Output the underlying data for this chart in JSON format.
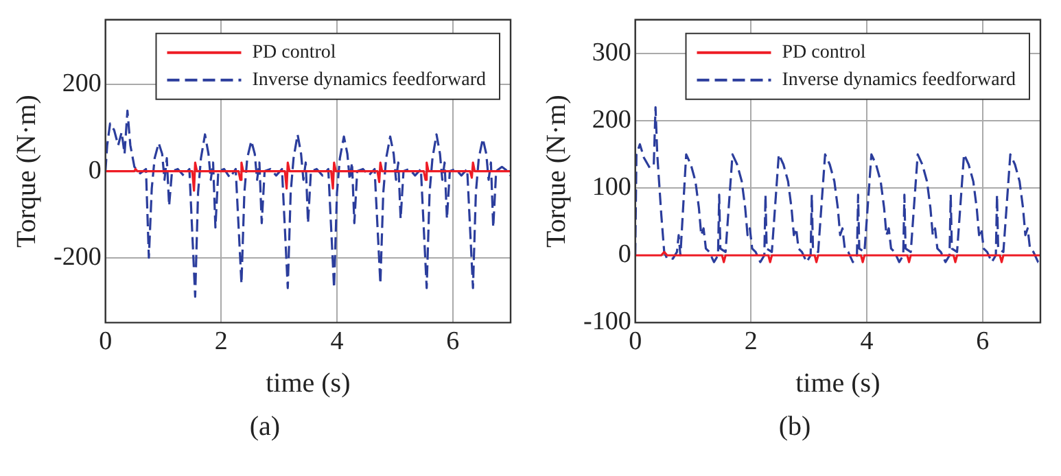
{
  "chart_data": [
    {
      "type": "line",
      "xlabel": "time (s)",
      "ylabel": "Torque (N·m)",
      "xlim": [
        0,
        7
      ],
      "xticks": [
        0,
        2,
        4,
        6
      ],
      "ylim": [
        -350,
        350
      ],
      "yticks": [
        -200,
        0,
        200
      ],
      "grid": true,
      "legend": "top right",
      "marker": "none",
      "annotations": [
        "(a)"
      ],
      "series": [
        {
          "name": "PD control",
          "color": "#ee1c25",
          "line_style": "solid",
          "x": [
            0,
            0.5,
            0.52,
            0.55,
            1.5,
            1.53,
            1.55,
            1.58,
            2.3,
            2.33,
            2.35,
            2.38,
            3.1,
            3.13,
            3.15,
            3.18,
            3.9,
            3.93,
            3.95,
            3.98,
            4.7,
            4.73,
            4.75,
            4.78,
            5.5,
            5.53,
            5.55,
            5.58,
            6.3,
            6.33,
            6.35,
            6.38,
            7
          ],
          "values": [
            0,
            0,
            5,
            0,
            0,
            -45,
            20,
            0,
            0,
            -20,
            20,
            0,
            0,
            -40,
            20,
            0,
            0,
            -40,
            20,
            0,
            0,
            -25,
            20,
            0,
            0,
            -20,
            20,
            0,
            0,
            -15,
            20,
            0,
            0
          ]
        },
        {
          "name": "Inverse dynamics feedforward",
          "color": "#2b3d9c",
          "line_style": "dashed",
          "x": [
            0,
            0.03,
            0.08,
            0.15,
            0.22,
            0.28,
            0.33,
            0.38,
            0.43,
            0.5,
            0.6,
            0.7,
            0.75,
            0.8,
            0.85,
            0.92,
            0.98,
            1.02,
            1.06,
            1.1,
            1.15,
            1.25,
            1.35,
            1.45,
            1.55,
            1.6,
            1.65,
            1.72,
            1.78,
            1.82,
            1.86,
            1.9,
            1.95,
            2.05,
            2.15,
            2.25,
            2.35,
            2.4,
            2.45,
            2.52,
            2.58,
            2.62,
            2.66,
            2.7,
            2.75,
            2.85,
            2.95,
            3.05,
            3.15,
            3.2,
            3.25,
            3.32,
            3.38,
            3.42,
            3.46,
            3.5,
            3.55,
            3.65,
            3.75,
            3.85,
            3.95,
            4,
            4.05,
            4.12,
            4.18,
            4.22,
            4.26,
            4.3,
            4.35,
            4.45,
            4.55,
            4.65,
            4.75,
            4.8,
            4.85,
            4.92,
            4.98,
            5.02,
            5.06,
            5.1,
            5.15,
            5.25,
            5.35,
            5.45,
            5.55,
            5.6,
            5.65,
            5.72,
            5.78,
            5.82,
            5.86,
            5.9,
            5.95,
            6.05,
            6.15,
            6.25,
            6.35,
            6.4,
            6.45,
            6.52,
            6.58,
            6.62,
            6.66,
            6.7,
            6.75,
            6.85,
            6.95,
            7
          ],
          "values": [
            0,
            60,
            110,
            95,
            60,
            90,
            40,
            140,
            60,
            10,
            -5,
            5,
            -200,
            -40,
            30,
            65,
            40,
            -20,
            30,
            -80,
            0,
            5,
            -10,
            5,
            -290,
            -50,
            30,
            85,
            40,
            -20,
            20,
            -130,
            0,
            5,
            -15,
            5,
            -260,
            -50,
            30,
            70,
            40,
            -20,
            20,
            -120,
            0,
            5,
            -10,
            5,
            -270,
            -50,
            30,
            85,
            40,
            -20,
            20,
            -120,
            0,
            5,
            -10,
            5,
            -270,
            -50,
            30,
            80,
            40,
            -20,
            20,
            -120,
            0,
            5,
            -10,
            5,
            -260,
            -50,
            30,
            80,
            40,
            -20,
            20,
            -110,
            0,
            5,
            -10,
            5,
            -270,
            -50,
            30,
            85,
            40,
            -20,
            20,
            -110,
            0,
            5,
            -10,
            5,
            -270,
            -50,
            30,
            75,
            40,
            -20,
            20,
            -130,
            0,
            10,
            0,
            -10
          ]
        }
      ]
    },
    {
      "type": "line",
      "xlabel": "time (s)",
      "ylabel": "Torque (N·m)",
      "xlim": [
        0,
        7
      ],
      "xticks": [
        0,
        2,
        4,
        6
      ],
      "ylim": [
        -100,
        350
      ],
      "yticks": [
        -100,
        0,
        100,
        200,
        300
      ],
      "grid": true,
      "legend": "top right",
      "marker": "none",
      "annotations": [
        "(b)"
      ],
      "series": [
        {
          "name": "PD control",
          "color": "#ee1c25",
          "line_style": "solid",
          "x": [
            0,
            0.45,
            0.5,
            0.55,
            1.5,
            1.53,
            1.56,
            2.3,
            2.33,
            2.36,
            3.1,
            3.13,
            3.16,
            3.9,
            3.93,
            3.96,
            4.7,
            4.73,
            4.76,
            5.5,
            5.53,
            5.56,
            6.3,
            6.33,
            6.36,
            7
          ],
          "values": [
            0,
            0,
            5,
            0,
            0,
            -10,
            0,
            0,
            -10,
            0,
            0,
            -10,
            0,
            0,
            -10,
            0,
            0,
            -10,
            0,
            0,
            -10,
            0,
            0,
            -10,
            0,
            0
          ]
        },
        {
          "name": "Inverse dynamics feedforward",
          "color": "#2b3d9c",
          "line_style": "dashed",
          "x": [
            0,
            0.02,
            0.08,
            0.15,
            0.25,
            0.32,
            0.35,
            0.38,
            0.45,
            0.5,
            0.55,
            0.65,
            0.72,
            0.75,
            0.78,
            0.88,
            0.96,
            1.04,
            1.1,
            1.14,
            1.18,
            1.22,
            1.28,
            1.36,
            1.43,
            1.45,
            1.47,
            1.56,
            1.68,
            1.76,
            1.84,
            1.9,
            1.94,
            1.98,
            2.02,
            2.08,
            2.16,
            2.23,
            2.25,
            2.27,
            2.36,
            2.48,
            2.56,
            2.64,
            2.7,
            2.74,
            2.78,
            2.82,
            2.88,
            2.96,
            3.03,
            3.05,
            3.07,
            3.16,
            3.28,
            3.36,
            3.44,
            3.5,
            3.54,
            3.58,
            3.62,
            3.68,
            3.76,
            3.83,
            3.85,
            3.87,
            3.96,
            4.08,
            4.16,
            4.24,
            4.3,
            4.34,
            4.38,
            4.42,
            4.48,
            4.56,
            4.63,
            4.65,
            4.67,
            4.76,
            4.88,
            4.96,
            5.04,
            5.1,
            5.14,
            5.18,
            5.22,
            5.28,
            5.36,
            5.43,
            5.45,
            5.47,
            5.56,
            5.68,
            5.76,
            5.84,
            5.9,
            5.94,
            5.98,
            6.02,
            6.08,
            6.16,
            6.23,
            6.25,
            6.27,
            6.36,
            6.48,
            6.56,
            6.64,
            6.7,
            6.74,
            6.78,
            6.82,
            6.88,
            6.96,
            7
          ],
          "values": [
            0,
            150,
            165,
            145,
            130,
            135,
            220,
            150,
            60,
            5,
            -5,
            -5,
            5,
            30,
            0,
            150,
            135,
            110,
            70,
            30,
            40,
            10,
            5,
            -10,
            0,
            90,
            10,
            5,
            150,
            135,
            110,
            70,
            30,
            40,
            10,
            5,
            -10,
            0,
            90,
            10,
            5,
            150,
            135,
            110,
            70,
            30,
            40,
            10,
            5,
            -10,
            0,
            90,
            10,
            5,
            150,
            135,
            110,
            70,
            30,
            40,
            10,
            5,
            -10,
            0,
            90,
            10,
            5,
            150,
            135,
            110,
            70,
            30,
            40,
            10,
            5,
            -10,
            0,
            90,
            10,
            5,
            150,
            135,
            110,
            70,
            30,
            40,
            10,
            5,
            -10,
            0,
            90,
            10,
            5,
            150,
            135,
            110,
            70,
            30,
            40,
            10,
            5,
            -10,
            0,
            90,
            10,
            5,
            150,
            135,
            110,
            70,
            30,
            40,
            10,
            5,
            -10,
            -10
          ]
        }
      ]
    }
  ]
}
